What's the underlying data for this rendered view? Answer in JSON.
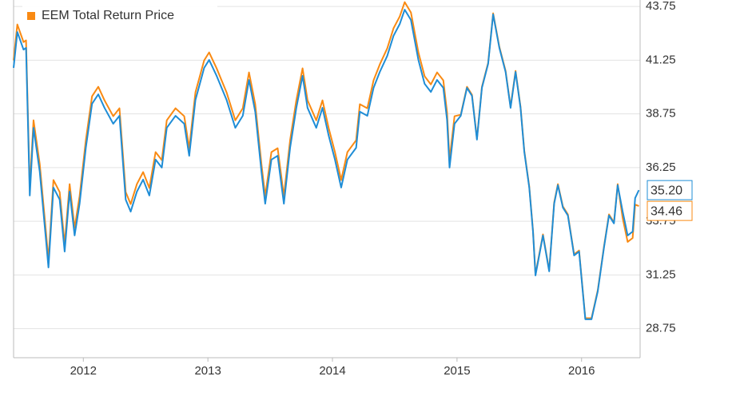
{
  "chart_data": {
    "type": "line",
    "x": [
      2011.44,
      2011.47,
      2011.52,
      2011.54,
      2011.57,
      2011.6,
      2011.65,
      2011.7,
      2011.72,
      2011.76,
      2011.81,
      2011.85,
      2011.89,
      2011.93,
      2011.97,
      2012.02,
      2012.07,
      2012.12,
      2012.17,
      2012.24,
      2012.29,
      2012.34,
      2012.38,
      2012.43,
      2012.48,
      2012.53,
      2012.58,
      2012.63,
      2012.67,
      2012.74,
      2012.81,
      2012.85,
      2012.9,
      2012.97,
      2013.01,
      2013.07,
      2013.15,
      2013.22,
      2013.28,
      2013.33,
      2013.38,
      2013.43,
      2013.46,
      2013.51,
      2013.56,
      2013.61,
      2013.66,
      2013.71,
      2013.76,
      2013.8,
      2013.87,
      2013.92,
      2013.97,
      2014.02,
      2014.07,
      2014.12,
      2014.19,
      2014.22,
      2014.28,
      2014.33,
      2014.38,
      2014.44,
      2014.49,
      2014.54,
      2014.58,
      2014.63,
      2014.69,
      2014.74,
      2014.79,
      2014.84,
      2014.89,
      2014.92,
      2014.94,
      2014.98,
      2015.03,
      2015.08,
      2015.12,
      2015.16,
      2015.2,
      2015.25,
      2015.29,
      2015.34,
      2015.39,
      2015.43,
      2015.47,
      2015.51,
      2015.54,
      2015.58,
      2015.61,
      2015.63,
      2015.69,
      2015.74,
      2015.78,
      2015.81,
      2015.85,
      2015.89,
      2015.94,
      2015.98,
      2016.03,
      2016.08,
      2016.13,
      2016.18,
      2016.22,
      2016.26,
      2016.29,
      2016.33,
      2016.37,
      2016.41,
      2016.43,
      2016.46
    ],
    "series": [
      {
        "color": "#1f8dd6",
        "end_label": "35.20",
        "values": [
          40.89,
          42.56,
          41.74,
          41.82,
          34.95,
          38.1,
          36.06,
          32.9,
          31.6,
          35.32,
          34.76,
          32.34,
          35.13,
          33.09,
          34.57,
          37.17,
          39.22,
          39.66,
          39.03,
          38.29,
          38.66,
          34.76,
          34.2,
          35.13,
          35.69,
          34.95,
          36.62,
          36.25,
          38.1,
          38.66,
          38.29,
          36.8,
          39.4,
          40.89,
          41.26,
          40.52,
          39.4,
          38.1,
          38.66,
          40.33,
          38.85,
          36.06,
          34.57,
          36.62,
          36.8,
          34.57,
          37.17,
          39.03,
          40.52,
          39.03,
          38.1,
          39.03,
          37.73,
          36.62,
          35.32,
          36.62,
          37.17,
          38.85,
          38.66,
          39.96,
          40.7,
          41.45,
          42.38,
          42.93,
          43.6,
          43.12,
          41.26,
          40.15,
          39.77,
          40.33,
          39.96,
          38.47,
          36.25,
          38.29,
          38.66,
          39.96,
          39.59,
          37.55,
          39.96,
          41.08,
          43.38,
          41.82,
          40.7,
          39.03,
          40.7,
          39.03,
          36.99,
          35.32,
          33.27,
          31.23,
          33.09,
          31.42,
          34.57,
          35.43,
          34.39,
          34.02,
          32.16,
          32.34,
          29.19,
          29.19,
          30.49,
          32.53,
          34.02,
          33.65,
          35.43,
          34.2,
          33.09,
          33.27,
          34.83,
          35.2
        ]
      },
      {
        "name": "EEM Total Return Price",
        "color": "#f98a13",
        "end_label": "34.46",
        "values": [
          41.24,
          42.91,
          42.09,
          42.17,
          35.3,
          38.45,
          36.41,
          33.25,
          31.95,
          35.67,
          35.11,
          32.69,
          35.48,
          33.44,
          34.92,
          37.52,
          39.57,
          40.01,
          39.38,
          38.64,
          39.01,
          35.11,
          34.55,
          35.48,
          36.04,
          35.3,
          36.97,
          36.6,
          38.45,
          39.01,
          38.64,
          37.15,
          39.75,
          41.24,
          41.61,
          40.87,
          39.75,
          38.45,
          39.01,
          40.68,
          39.2,
          36.41,
          34.92,
          36.97,
          37.15,
          34.92,
          37.52,
          39.38,
          40.87,
          39.38,
          38.45,
          39.38,
          38.08,
          36.97,
          35.67,
          36.97,
          37.52,
          39.2,
          39.01,
          40.31,
          41.05,
          41.8,
          42.73,
          43.28,
          43.95,
          43.47,
          41.61,
          40.5,
          40.12,
          40.68,
          40.31,
          38.82,
          36.6,
          38.64,
          38.71,
          40.01,
          39.64,
          37.6,
          40.01,
          41.13,
          43.43,
          41.87,
          40.75,
          39.08,
          40.75,
          39.08,
          37.04,
          35.37,
          33.32,
          31.28,
          33.14,
          31.47,
          34.62,
          35.48,
          34.44,
          34.07,
          32.21,
          32.39,
          29.24,
          29.24,
          30.54,
          32.58,
          34.07,
          33.7,
          35.48,
          33.9,
          32.79,
          32.97,
          34.53,
          34.46
        ]
      }
    ],
    "xlim": [
      2011.44,
      2016.47
    ],
    "xticks": [
      2012,
      2013,
      2014,
      2015,
      2016
    ],
    "ylim": [
      27.4,
      44.05
    ],
    "yticks": [
      28.75,
      31.25,
      33.75,
      36.25,
      38.75,
      41.25,
      43.75
    ],
    "grid": true,
    "legend": "top-left"
  }
}
